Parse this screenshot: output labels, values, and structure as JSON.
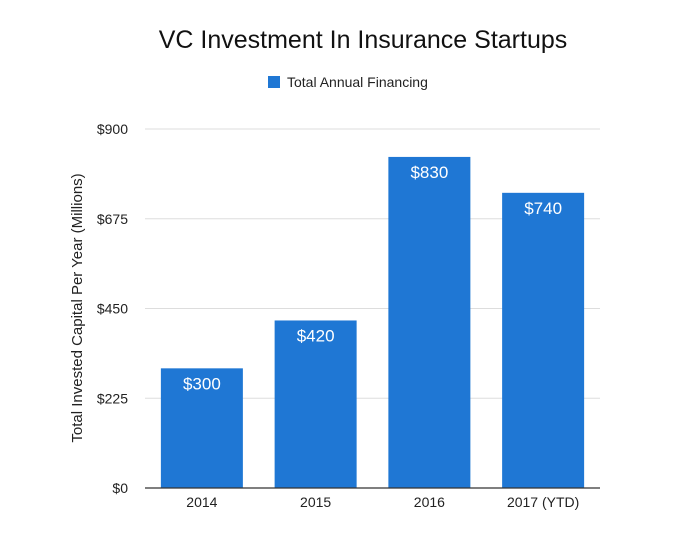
{
  "chart_data": {
    "type": "bar",
    "title": "VC Investment In Insurance Startups",
    "categories": [
      "2014",
      "2015",
      "2016",
      "2017 (YTD)"
    ],
    "series": [
      {
        "name": "Total Annual Financing",
        "values": [
          300,
          420,
          830,
          740
        ],
        "color": "#1f77d4"
      }
    ],
    "data_labels": [
      "$300",
      "$420",
      "$830",
      "$740"
    ],
    "ylabel": "Total Invested Capital Per Year (Millions)",
    "xlabel": "",
    "ylim": [
      0,
      900
    ],
    "y_ticks": [
      0,
      225,
      450,
      675,
      900
    ],
    "y_tick_labels": [
      "$0",
      "$225",
      "$450",
      "$675",
      "$900"
    ],
    "grid": true,
    "legend_position": "top"
  }
}
